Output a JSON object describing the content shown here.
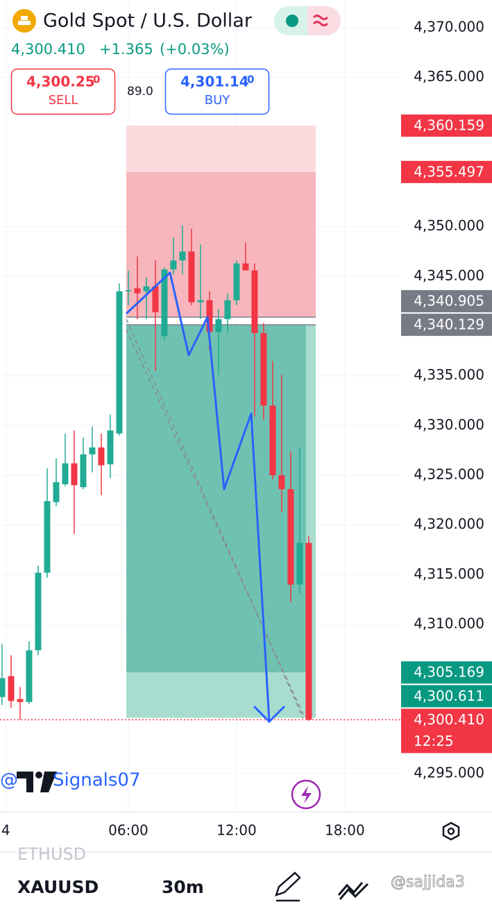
{
  "header": {
    "title": "Gold Spot / U.S. Dollar",
    "price": "4,300.410",
    "change": "+1.365",
    "change_pct": "(+0.03%)",
    "sell": {
      "price": "4,300.25",
      "pip": "0",
      "label": "SELL"
    },
    "spread": "89.0",
    "buy": {
      "price": "4,301.14",
      "pip": "0",
      "label": "BUY"
    }
  },
  "chart_data": {
    "type": "candlestick",
    "x": [
      -1.0,
      -0.5,
      0,
      0.5,
      1,
      1.5,
      2,
      2.5,
      3,
      3.5,
      4,
      4.5,
      5,
      5.5,
      6,
      6.5,
      7,
      7.5,
      8,
      8.5,
      9,
      9.5,
      10,
      10.5,
      11,
      11.5,
      12,
      12.5,
      13,
      13.5,
      14,
      14.5,
      15,
      15.5,
      16
    ],
    "open": [
      4302.7,
      4304.8,
      4302.5,
      4302.2,
      4307.4,
      4315.2,
      4322.3,
      4324.1,
      4326.2,
      4323.8,
      4327.1,
      4327.8,
      4326.1,
      4329.2,
      4343.5,
      4343.8,
      4343.5,
      4344.0,
      4339.0,
      4345.7,
      4346.6,
      4347.5,
      4342.4,
      4342.6,
      4339.4,
      4340.7,
      4342.6,
      4346.3,
      4345.6,
      4339.3,
      4332.0,
      4325.0,
      4323.6,
      4314.0,
      4318.2
    ],
    "high": [
      4308.0,
      4306.9,
      4303.7,
      4308.3,
      4315.9,
      4325.7,
      4326.7,
      4329.2,
      4329.5,
      4328.8,
      4329.9,
      4329.2,
      4331.1,
      4344.3,
      4345.6,
      4347.0,
      4344.9,
      4346.6,
      4345.9,
      4348.9,
      4350.1,
      4349.8,
      4348.2,
      4343.5,
      4341.7,
      4343.3,
      4346.6,
      4348.4,
      4346.3,
      4340.3,
      4336.5,
      4335.1,
      4327.4,
      4327.8,
      4318.9
    ],
    "low": [
      4301.9,
      4301.6,
      4300.4,
      4302.0,
      4306.9,
      4314.7,
      4321.9,
      4323.9,
      4319.1,
      4323.6,
      4325.3,
      4323.0,
      4324.7,
      4329.0,
      4342.1,
      4340.7,
      4340.7,
      4335.5,
      4338.6,
      4345.2,
      4345.2,
      4342.1,
      4340.7,
      4337.6,
      4335.1,
      4339.3,
      4342.1,
      4345.6,
      4330.9,
      4330.6,
      4324.6,
      4321.3,
      4312.2,
      4313.1,
      4300.3
    ],
    "close": [
      4304.6,
      4302.3,
      4302.2,
      4307.4,
      4315.2,
      4322.4,
      4324.3,
      4326.2,
      4324.0,
      4327.1,
      4327.8,
      4326.0,
      4329.5,
      4343.5,
      4343.6,
      4343.3,
      4344.0,
      4341.4,
      4345.7,
      4346.6,
      4347.5,
      4342.4,
      4342.6,
      4339.4,
      4340.7,
      4342.6,
      4346.3,
      4345.6,
      4339.3,
      4332.0,
      4325.0,
      4323.6,
      4314.0,
      4318.2,
      4300.41
    ],
    "up_color": "#22ab94",
    "down_color": "#f23645",
    "xlim": [
      -1.115,
      21.12
    ],
    "ylim": [
      4291.16,
      4372.79
    ],
    "xticks": [
      {
        "value": -0.8,
        "label": "4"
      },
      {
        "value": 6,
        "label": "06:00"
      },
      {
        "value": 12,
        "label": "12:00"
      },
      {
        "value": 18,
        "label": "18:00"
      }
    ],
    "yticks": [
      {
        "value": 4370,
        "label": "4,370.000"
      },
      {
        "value": 4365,
        "label": "4,365.000"
      },
      {
        "value": 4350,
        "label": "4,350.000"
      },
      {
        "value": 4345,
        "label": "4,345.000"
      },
      {
        "value": 4335,
        "label": "4,335.000"
      },
      {
        "value": 4330,
        "label": "4,330.000"
      },
      {
        "value": 4325,
        "label": "4,325.000"
      },
      {
        "value": 4320,
        "label": "4,320.000"
      },
      {
        "value": 4315,
        "label": "4,315.000"
      },
      {
        "value": 4310,
        "label": "4,310.000"
      },
      {
        "value": 4295,
        "label": "4,295.000"
      }
    ],
    "grid": true,
    "price_labels": [
      {
        "value": 4360.159,
        "label": "4,360.159",
        "color": "#f23645"
      },
      {
        "value": 4355.497,
        "label": "4,355.497",
        "color": "#f23645"
      },
      {
        "value": 4340.905,
        "label": "4,340.905",
        "color": "#787b86"
      },
      {
        "value": 4340.129,
        "label": "4,340.129",
        "color": "#787b86"
      },
      {
        "value": 4305.169,
        "label": "4,305.169",
        "color": "#089981"
      },
      {
        "value": 4300.611,
        "label": "4,300.611",
        "color": "#089981"
      },
      {
        "value": 4300.41,
        "label": "4,300.410",
        "time": "12:25",
        "color": "#f23645"
      }
    ]
  },
  "footer": {
    "watermark_at": "@",
    "watermark": "Signals07",
    "tab_prev": "ETHUSD",
    "symbol": "XAUUSD",
    "interval": "30m",
    "credit": "@sajjida3"
  }
}
